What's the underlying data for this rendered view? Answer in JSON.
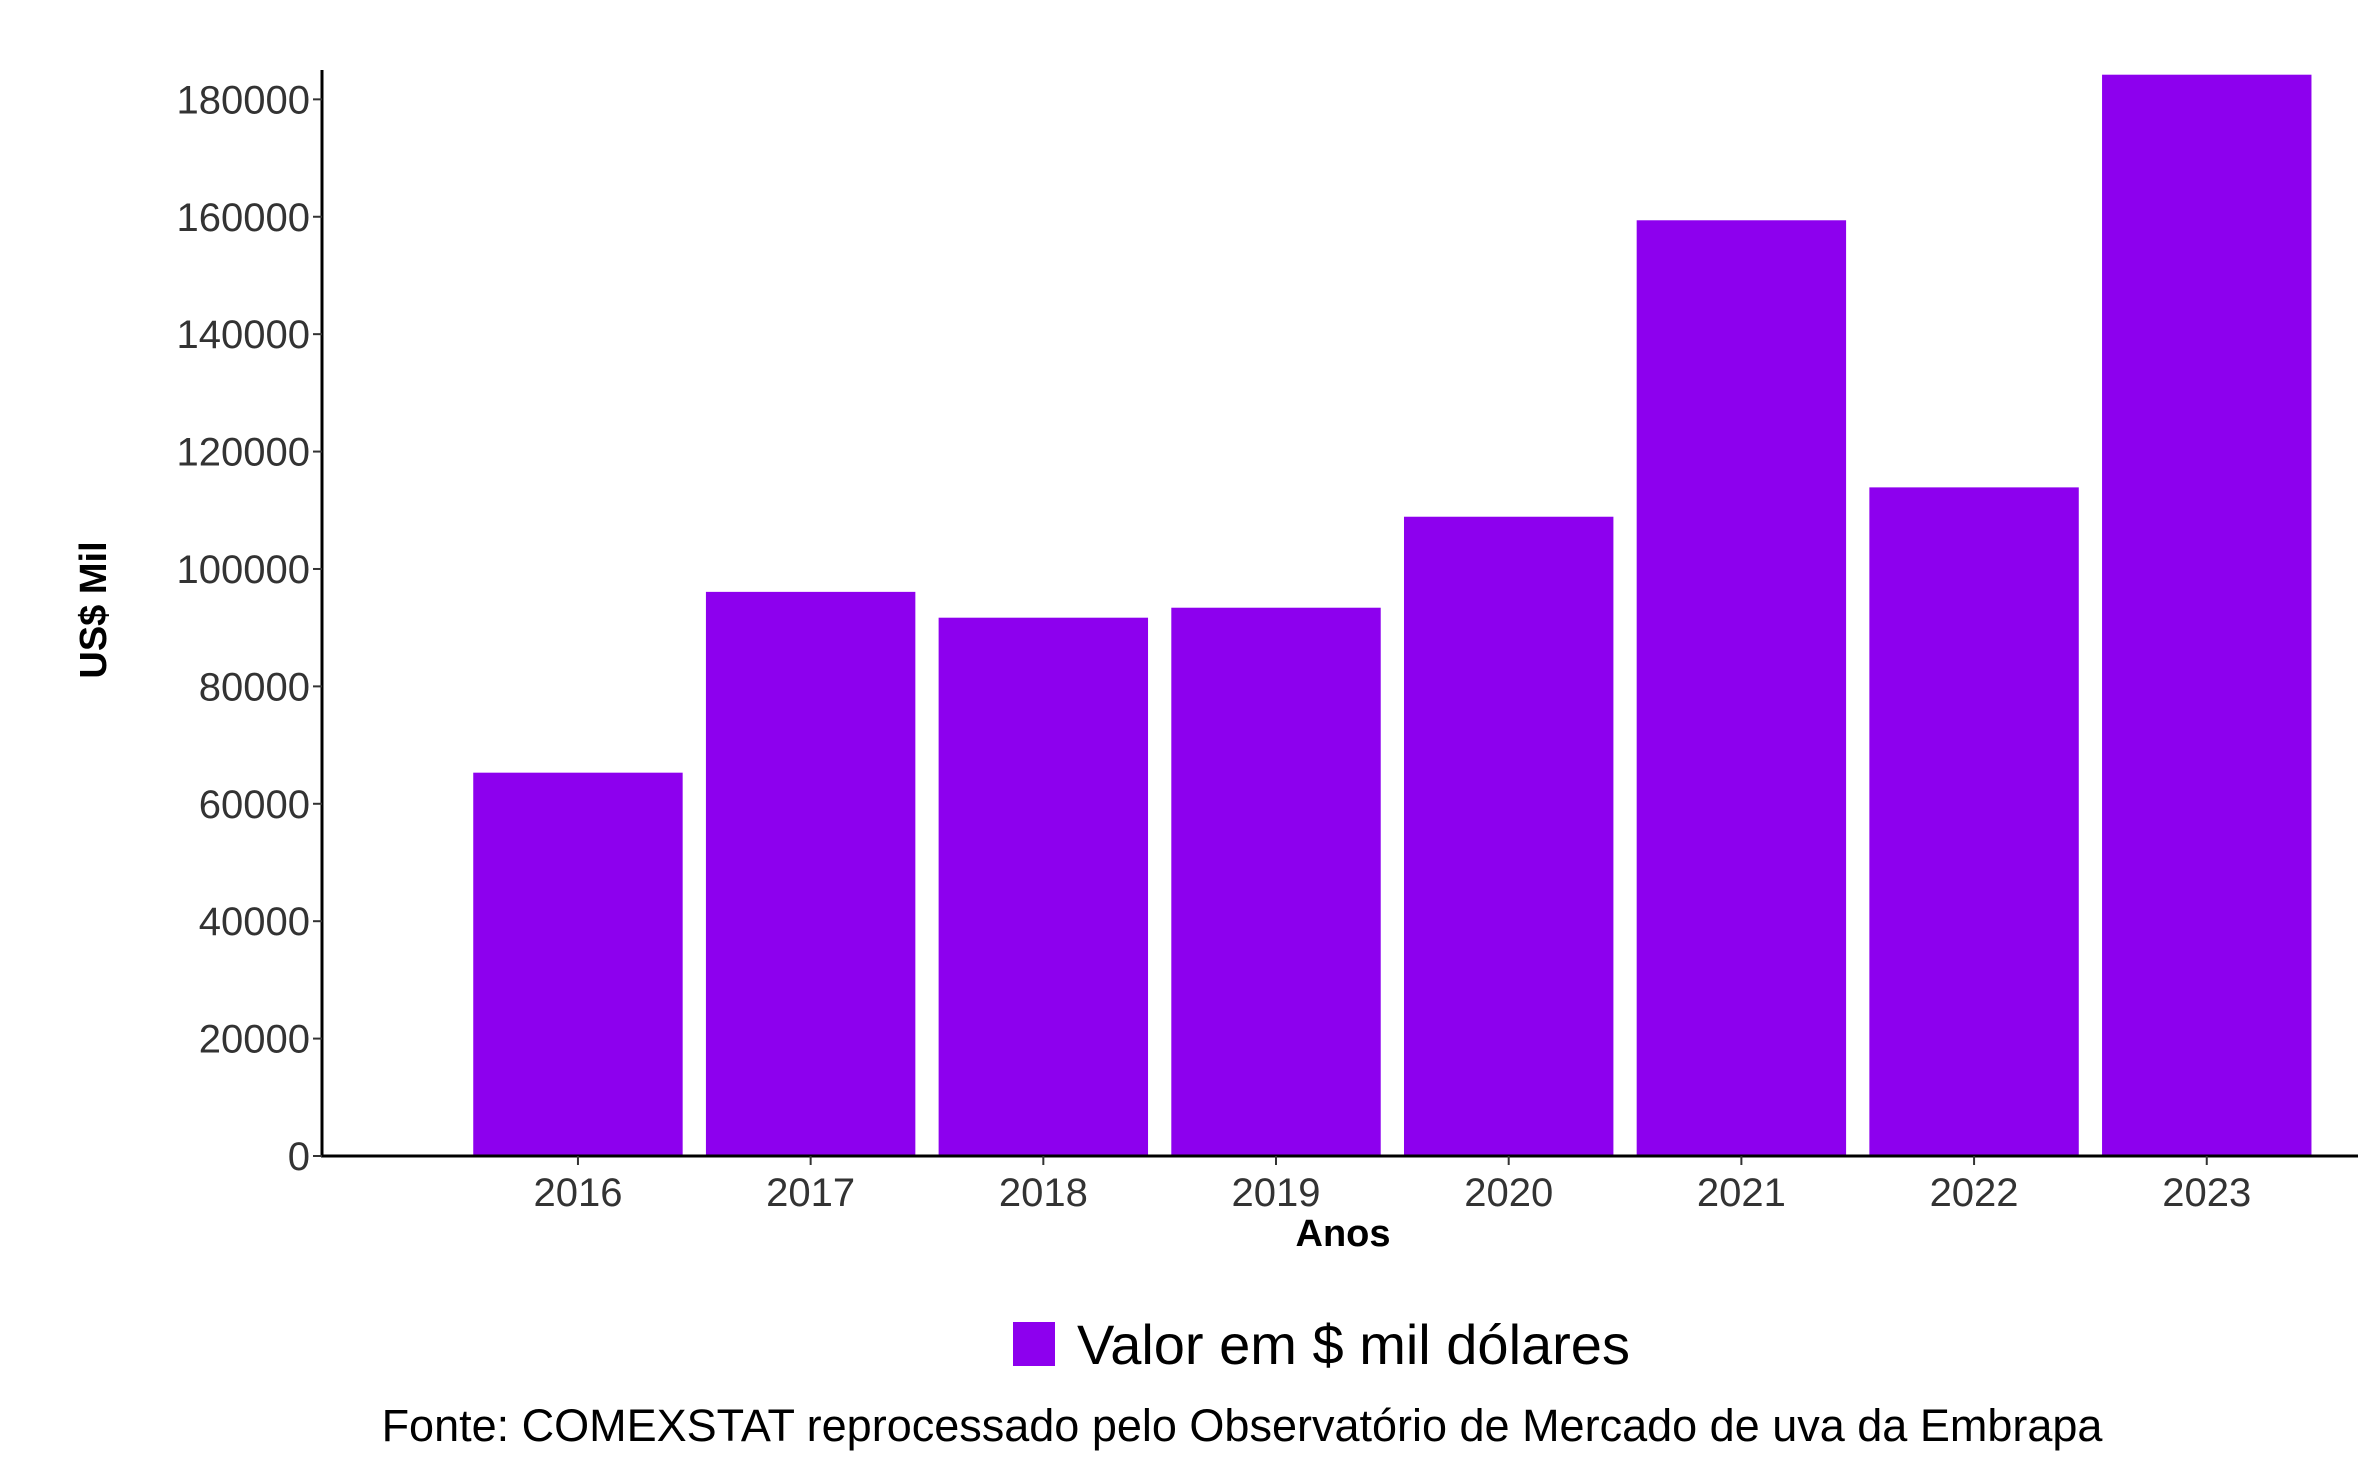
{
  "chart_data": {
    "type": "bar",
    "categories": [
      "2016",
      "2017",
      "2018",
      "2019",
      "2020",
      "2021",
      "2022",
      "2023"
    ],
    "series": [
      {
        "name": "Valor em $ mil dólares",
        "values": [
          65300,
          96100,
          91700,
          93400,
          108900,
          159400,
          113900,
          184200
        ],
        "color": "#8d00ee"
      }
    ],
    "xlabel": "Anos",
    "ylabel": "US$ Mil",
    "ylim": [
      0,
      185000
    ],
    "yticks": [
      0,
      20000,
      40000,
      60000,
      80000,
      100000,
      120000,
      140000,
      160000,
      180000
    ],
    "grid": false,
    "legend_position": "bottom",
    "caption": "Fonte: COMEXSTAT reprocessado pelo Observatório de Mercado de uva da Embrapa"
  }
}
